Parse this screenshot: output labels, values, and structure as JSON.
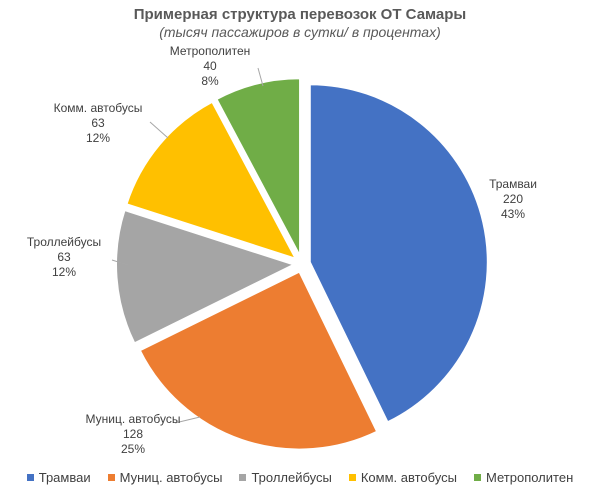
{
  "chart_data": {
    "type": "pie",
    "title": "Примерная структура перевозок ОТ Самары",
    "subtitle": "(тысяч пассажиров в сутки/ в процентах)",
    "categories": [
      "Трамваи",
      "Муниц. автобусы",
      "Троллейбусы",
      "Комм. автобусы",
      "Метрополитен"
    ],
    "values": [
      220,
      128,
      63,
      63,
      40
    ],
    "percent_labels": [
      "43%",
      "25%",
      "12%",
      "12%",
      "8%"
    ],
    "value_labels": [
      "220",
      "128",
      "63",
      "63",
      "40"
    ],
    "colors": [
      "#4472C4",
      "#ED7D31",
      "#A5A5A5",
      "#FFC000",
      "#70AD47"
    ],
    "exploded": true,
    "legend_position": "bottom"
  }
}
